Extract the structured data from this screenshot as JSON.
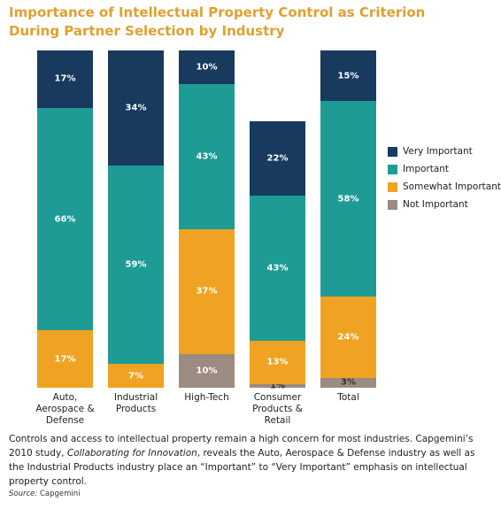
{
  "chart_data": {
    "type": "stacked_bar",
    "title": "Importance of Intellectual Property Control as Criterion During Partner Selection by Industry",
    "categories": [
      "Auto,\nAerospace &\nDefense",
      "Industrial\nProducts",
      "High-Tech",
      "Consumer\nProducts &\nRetail",
      "Total"
    ],
    "series": [
      {
        "name": "Not Important",
        "color": "#9c8b80",
        "values": [
          null,
          null,
          10,
          1,
          3
        ],
        "value_labels": [
          null,
          null,
          "10%",
          "1%",
          "3%"
        ]
      },
      {
        "name": "Somewhat Important",
        "color": "#f0a322",
        "values": [
          17,
          7,
          37,
          13,
          24
        ],
        "value_labels": [
          "17%",
          "7%",
          "37%",
          "13%",
          "24%"
        ]
      },
      {
        "name": "Important",
        "color": "#1f9b96",
        "values": [
          66,
          59,
          43,
          43,
          58
        ],
        "value_labels": [
          "66%",
          "59%",
          "43%",
          "43%",
          "58%"
        ]
      },
      {
        "name": "Very Important",
        "color": "#173a5e",
        "values": [
          17,
          34,
          10,
          22,
          15
        ],
        "value_labels": [
          "17%",
          "34%",
          "10%",
          "22%",
          "15%"
        ]
      }
    ],
    "ylim": [
      0,
      100
    ],
    "caption": [
      "Controls and access to intellectual property remain a high concern for most industries.  Capgemini’s 2010 study, ",
      "Collaborating for Innovation",
      ", reveals the Auto, Aerospace & Defense industry as well as the Industrial Products industry place an “Important” to “Very Important” emphasis on intellectual property control."
    ],
    "source_label": "Source:",
    "source": "Capgemini"
  }
}
